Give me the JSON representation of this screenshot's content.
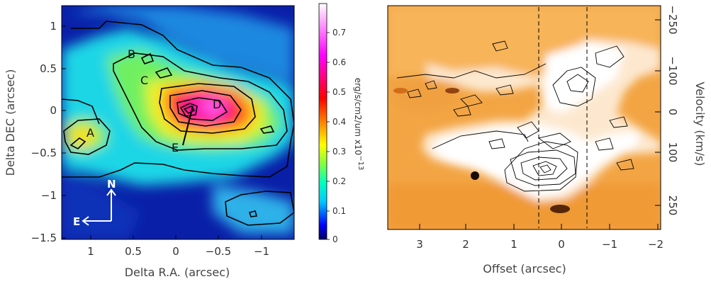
{
  "left_panel": {
    "xlabel": "Delta R.A. (arcsec)",
    "ylabel": "Delta DEC (arcsec)",
    "x_ticks": [
      "1",
      "0.5",
      "0",
      "−0.5",
      "−1"
    ],
    "y_ticks": [
      "1",
      "0.5",
      "0",
      "−0.5",
      "−1",
      "−1.5"
    ],
    "regions": [
      "A",
      "B",
      "C",
      "D",
      "E"
    ],
    "compass": {
      "north": "N",
      "east": "E"
    }
  },
  "colorbar": {
    "ticks": [
      "0.7",
      "0.6",
      "0.5",
      "0.4",
      "0.3",
      "0.2",
      "0.1",
      "0"
    ],
    "unit_label": "erg/s/cm2/um  x10",
    "exponent": "−13",
    "colors": [
      "#000080",
      "#0000ff",
      "#00c8ff",
      "#00ffc0",
      "#80ff40",
      "#ffff00",
      "#ff8000",
      "#ff0000",
      "#ff00ff",
      "#ffffff"
    ]
  },
  "right_panel": {
    "xlabel": "Offset (arcsec)",
    "ylabel": "Velocity (km/s)",
    "x_ticks": [
      "3",
      "2",
      "1",
      "0",
      "−1",
      "−2"
    ],
    "y_ticks": [
      "−250",
      "−100",
      "0",
      "100",
      "250"
    ],
    "colors": [
      "#e88a1e",
      "#f7b050",
      "#ffffff"
    ]
  }
}
